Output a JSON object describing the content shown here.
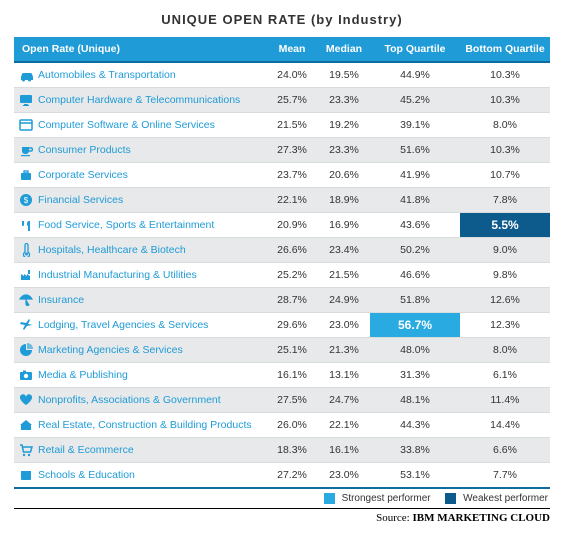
{
  "title": "UNIQUE OPEN RATE (by Industry)",
  "columns": [
    "Open Rate (Unique)",
    "Mean",
    "Median",
    "Top Quartile",
    "Bottom Quartile"
  ],
  "legend": {
    "strong": "Strongest performer",
    "weak": "Weakest performer"
  },
  "source_prefix": "Source: ",
  "source_name": "IBM MARKETING CLOUD",
  "colors": {
    "header_bg": "#1f9bd7",
    "header_border": "#0d6ca0",
    "row_odd": "#ffffff",
    "row_even": "#e7e9ea",
    "label_text": "#1f9bd7",
    "value_text": "#333333",
    "highlight_strong": "#29abe2",
    "highlight_weak": "#0d5b8c",
    "icon_fill": "#1f9bd7"
  },
  "typography": {
    "title_fontsize": 13,
    "header_fontsize": 10.5,
    "cell_fontsize": 10.5,
    "highlight_fontsize": 12,
    "legend_fontsize": 10,
    "source_fontsize": 11
  },
  "rows": [
    {
      "icon": "car",
      "label": "Automobiles & Transportation",
      "mean": "24.0%",
      "median": "19.5%",
      "tq": "44.9%",
      "bq": "10.3%"
    },
    {
      "icon": "monitor",
      "label": "Computer Hardware & Telecommunications",
      "mean": "25.7%",
      "median": "23.3%",
      "tq": "45.2%",
      "bq": "10.3%"
    },
    {
      "icon": "window",
      "label": "Computer Software & Online Services",
      "mean": "21.5%",
      "median": "19.2%",
      "tq": "39.1%",
      "bq": "8.0%"
    },
    {
      "icon": "cup",
      "label": "Consumer Products",
      "mean": "27.3%",
      "median": "23.3%",
      "tq": "51.6%",
      "bq": "10.3%"
    },
    {
      "icon": "briefcase",
      "label": "Corporate Services",
      "mean": "23.7%",
      "median": "20.6%",
      "tq": "41.9%",
      "bq": "10.7%"
    },
    {
      "icon": "dollar",
      "label": "Financial Services",
      "mean": "22.1%",
      "median": "18.9%",
      "tq": "41.8%",
      "bq": "7.8%"
    },
    {
      "icon": "food",
      "label": "Food Service, Sports & Entertainment",
      "mean": "20.9%",
      "median": "16.9%",
      "tq": "43.6%",
      "bq": "5.5%",
      "bq_hl": "weak"
    },
    {
      "icon": "thermo",
      "label": "Hospitals, Healthcare & Biotech",
      "mean": "26.6%",
      "median": "23.4%",
      "tq": "50.2%",
      "bq": "9.0%"
    },
    {
      "icon": "factory",
      "label": "Industrial Manufacturing & Utilities",
      "mean": "25.2%",
      "median": "21.5%",
      "tq": "46.6%",
      "bq": "9.8%"
    },
    {
      "icon": "umbrella",
      "label": "Insurance",
      "mean": "28.7%",
      "median": "24.9%",
      "tq": "51.8%",
      "bq": "12.6%"
    },
    {
      "icon": "plane",
      "label": "Lodging, Travel Agencies & Services",
      "mean": "29.6%",
      "median": "23.0%",
      "tq": "56.7%",
      "bq": "12.3%",
      "tq_hl": "strong"
    },
    {
      "icon": "pie",
      "label": "Marketing Agencies & Services",
      "mean": "25.1%",
      "median": "21.3%",
      "tq": "48.0%",
      "bq": "8.0%"
    },
    {
      "icon": "camera",
      "label": "Media & Publishing",
      "mean": "16.1%",
      "median": "13.1%",
      "tq": "31.3%",
      "bq": "6.1%"
    },
    {
      "icon": "heart",
      "label": "Nonprofits, Associations & Government",
      "mean": "27.5%",
      "median": "24.7%",
      "tq": "48.1%",
      "bq": "11.4%"
    },
    {
      "icon": "house",
      "label": "Real Estate, Construction & Building Products",
      "mean": "26.0%",
      "median": "22.1%",
      "tq": "44.3%",
      "bq": "14.4%"
    },
    {
      "icon": "cart",
      "label": "Retail & Ecommerce",
      "mean": "18.3%",
      "median": "16.1%",
      "tq": "33.8%",
      "bq": "6.6%"
    },
    {
      "icon": "book",
      "label": "Schools & Education",
      "mean": "27.2%",
      "median": "23.0%",
      "tq": "53.1%",
      "bq": "7.7%"
    }
  ]
}
